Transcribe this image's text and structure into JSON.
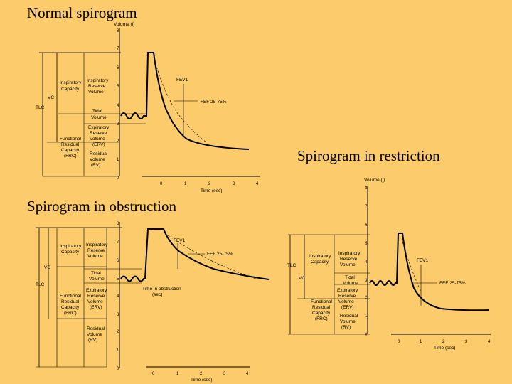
{
  "titles": {
    "normal": "Normal spirogram",
    "restriction": "Spirogram in restriction",
    "obstruction": "Spirogram in obstruction"
  },
  "normal": {
    "y_axis_label": "Volume (l)",
    "x_axis_label": "Time (sec)",
    "y_ticks": [
      "8",
      "7",
      "6",
      "5",
      "4",
      "3",
      "2",
      "1",
      "0"
    ],
    "x_ticks": [
      "0",
      "1",
      "2",
      "3",
      "4"
    ],
    "labels": {
      "tlc": "TLC",
      "vc": "VC",
      "ic": [
        "Inspiratory",
        "Capacity"
      ],
      "irv": [
        "Inspiratory",
        "Reserve",
        "Volume"
      ],
      "tv": [
        "Tidal",
        "Volume"
      ],
      "erv": [
        "Expiratory",
        "Reserve",
        "Volume",
        "(ERV)"
      ],
      "frc": [
        "Functional",
        "Residual",
        "Capacity",
        "(FRC)"
      ],
      "rv": [
        "Residual",
        "Volume",
        "(RV)"
      ],
      "fev1": "FEV1",
      "fef": "FEF 25-75%"
    }
  },
  "restriction": {
    "y_axis_label": "Volume (l)",
    "x_axis_label": "Time (sec)",
    "y_ticks": [
      "8",
      "7",
      "6",
      "5",
      "4",
      "3",
      "2",
      "1",
      "0"
    ],
    "x_ticks": [
      "0",
      "1",
      "2",
      "3",
      "4"
    ],
    "labels": {
      "tlc": "TLC",
      "vc": "VC",
      "ic": [
        "Inspiratory",
        "Capacity"
      ],
      "irv": [
        "Inspiratory",
        "Reserve",
        "Volume"
      ],
      "tv": [
        "Tidal",
        "Volume"
      ],
      "erv": [
        "Expiratory",
        "Reserve",
        "Volume",
        "(ERV)"
      ],
      "frc": [
        "Functional",
        "Residual",
        "Capacity",
        "(FRC)"
      ],
      "rv": [
        "Residual",
        "Volume",
        "(RV)"
      ],
      "fev1": "FEV1",
      "fef": "FEF 25-75%"
    }
  },
  "obstruction": {
    "x_axis_label": "Time (sec)",
    "y_ticks": [
      "8",
      "7",
      "6",
      "5",
      "4",
      "3",
      "2",
      "1",
      "0"
    ],
    "x_ticks": [
      "0",
      "1",
      "2",
      "3",
      "4"
    ],
    "labels": {
      "tlc": "TLC",
      "vc": "VC",
      "ic": [
        "Inspiratory",
        "Capacity"
      ],
      "irv": [
        "Inspiratory",
        "Reserve",
        "Volume"
      ],
      "tv": [
        "Tidal",
        "Volume"
      ],
      "erv": [
        "Expiratory",
        "Reserve",
        "Volume",
        "(ERV)"
      ],
      "frc": [
        "Functional",
        "Residual",
        "Capacity",
        "(FRC)"
      ],
      "rv": [
        "Residual",
        "Volume",
        "(RV)"
      ],
      "fev1": "FEV1",
      "fef": "FEF 25-75%",
      "time_note": [
        "Time in obstruction",
        "(sec)"
      ]
    }
  }
}
